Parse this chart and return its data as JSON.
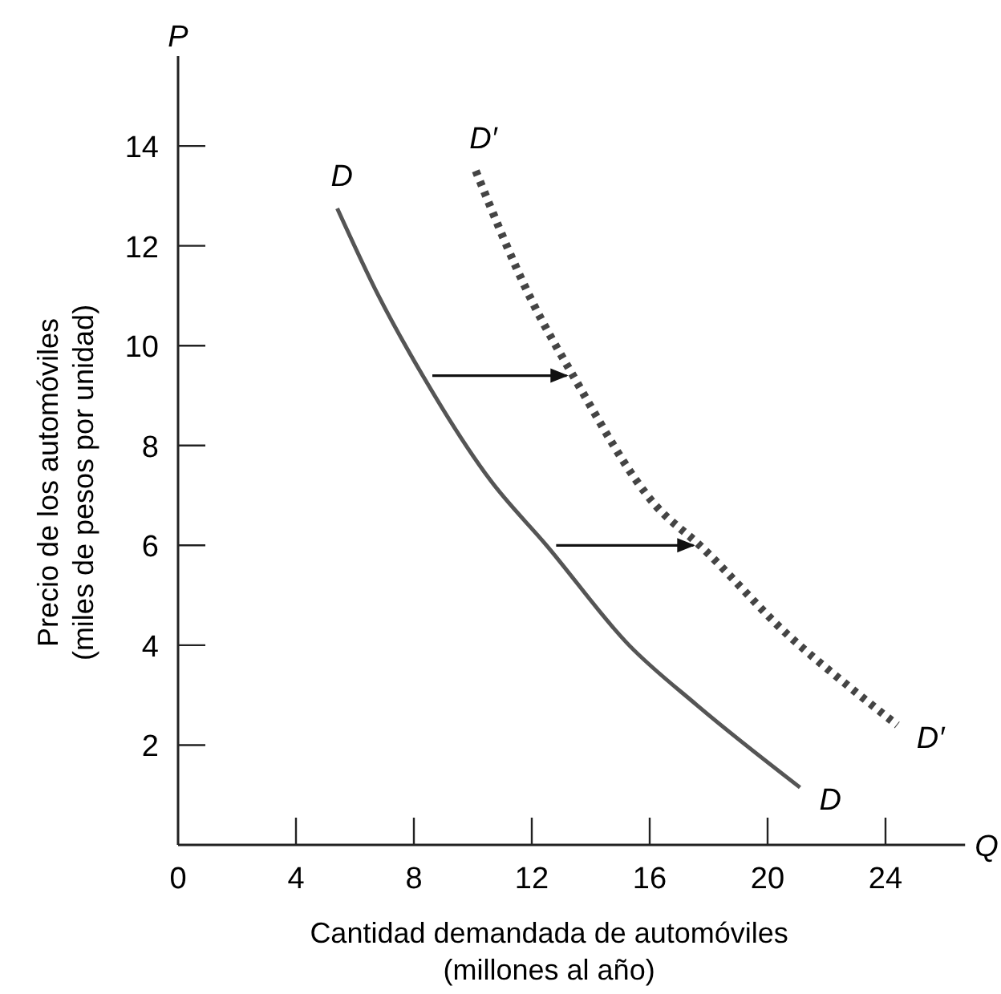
{
  "chart_data": {
    "type": "line",
    "xlabel": "Cantidad demandada de automóviles\n(millones al año)",
    "ylabel": "Precio de los automóviles\n(miles de pesos por unidad)",
    "annotations": [
      "P",
      "Q"
    ],
    "xlim": [
      0,
      26.7
    ],
    "ylim": [
      0,
      15.8
    ],
    "xticks": [
      0,
      4,
      8,
      12,
      16,
      20,
      24
    ],
    "yticks": [
      2,
      4,
      6,
      8,
      10,
      12,
      14
    ],
    "grid": false,
    "series": [
      {
        "name": "D",
        "color": "#555555",
        "line_style": "solid",
        "x": [
          5.4,
          6.8,
          8.3,
          10.6,
          12.5,
          15.3,
          17.6,
          21.1
        ],
        "values": [
          12.75,
          11,
          9.4,
          7.3,
          6,
          4,
          2.8,
          1.15
        ]
      },
      {
        "name": "D′",
        "color": "#444444",
        "line_style": "dotted",
        "x": [
          10.1,
          12.0,
          13.4,
          16.2,
          17.7,
          20.7,
          22.7,
          24.4
        ],
        "values": [
          13.5,
          10.9,
          9.4,
          6.8,
          6,
          4.2,
          3.2,
          2.4
        ]
      }
    ]
  }
}
